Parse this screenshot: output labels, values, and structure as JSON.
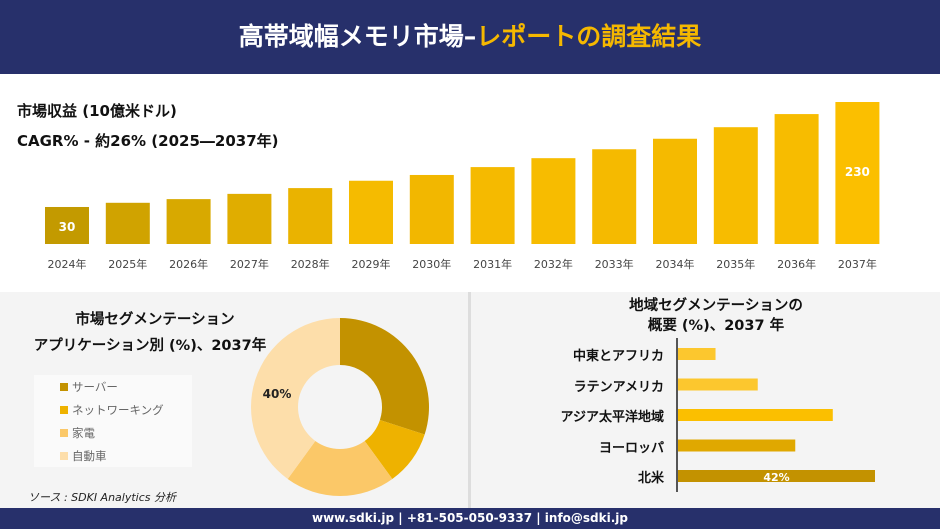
{
  "header": {
    "title_main": "高帯域幅メモリ市場",
    "title_dash": "–",
    "title_highlight": "レポートの調査結果"
  },
  "revenue_chart": {
    "title": "市場収益 (10億米ドル)",
    "cagr": "CAGR% - 約26% (2025―2037年)"
  },
  "application_chart": {
    "title_line1": "市場セグメンテーション",
    "title_line2": "アプリケーション別 (%)、2037年"
  },
  "region_chart": {
    "title_line1": "地域セグメンテーションの",
    "title_line2": "概要 (%)、2037 年"
  },
  "source": "ソース : SDKI Analytics 分析",
  "footer": "www.sdki.jp | +81-505-050-9337 | info@sdki.jp",
  "chart_data": [
    {
      "type": "bar",
      "title": "市場収益 (10億米ドル)",
      "categories": [
        "2024年",
        "2025年",
        "2026年",
        "2027年",
        "2028年",
        "2029年",
        "2030年",
        "2031年",
        "2032年",
        "2033年",
        "2034年",
        "2035年",
        "2036年",
        "2037年"
      ],
      "values": [
        30,
        38,
        45,
        55,
        66,
        80,
        91,
        106,
        123,
        140,
        160,
        182,
        207,
        230
      ],
      "data_labels": {
        "0": "30",
        "13": "230"
      },
      "colors": [
        "#c39a00",
        "#d0a300",
        "#d8a900",
        "#e0ad00",
        "#eab300",
        "#f5bb00",
        "#f2b700",
        "#f5ba00",
        "#f7bc00",
        "#f5ba00",
        "#f5ba00",
        "#f7bc00",
        "#f7bc00",
        "#fbbf00"
      ]
    },
    {
      "type": "pie",
      "title": "市場セグメンテーション アプリケーション別 (%)、2037年",
      "categories": [
        "サーバー",
        "ネットワーキング",
        "家電",
        "自動車"
      ],
      "values": [
        30,
        10,
        20,
        40
      ],
      "data_labels": {
        "3": "40%"
      },
      "colors": [
        "#c39200",
        "#eeb200",
        "#fbc868",
        "#fddeaa"
      ],
      "legend": "left"
    },
    {
      "type": "bar",
      "orientation": "horizontal",
      "title": "地域セグメンテーションの概要 (%)、2037 年",
      "categories": [
        "中東とアフリカ",
        "ラテンアメリカ",
        "アジア太平洋地域",
        "ヨーロッパ",
        "北米"
      ],
      "values": [
        8,
        17,
        33,
        25,
        42
      ],
      "data_labels": {
        "4": "42%"
      },
      "colors": [
        "#fcc72e",
        "#fcc72e",
        "#fbbf00",
        "#e0a800",
        "#c39200"
      ]
    }
  ]
}
